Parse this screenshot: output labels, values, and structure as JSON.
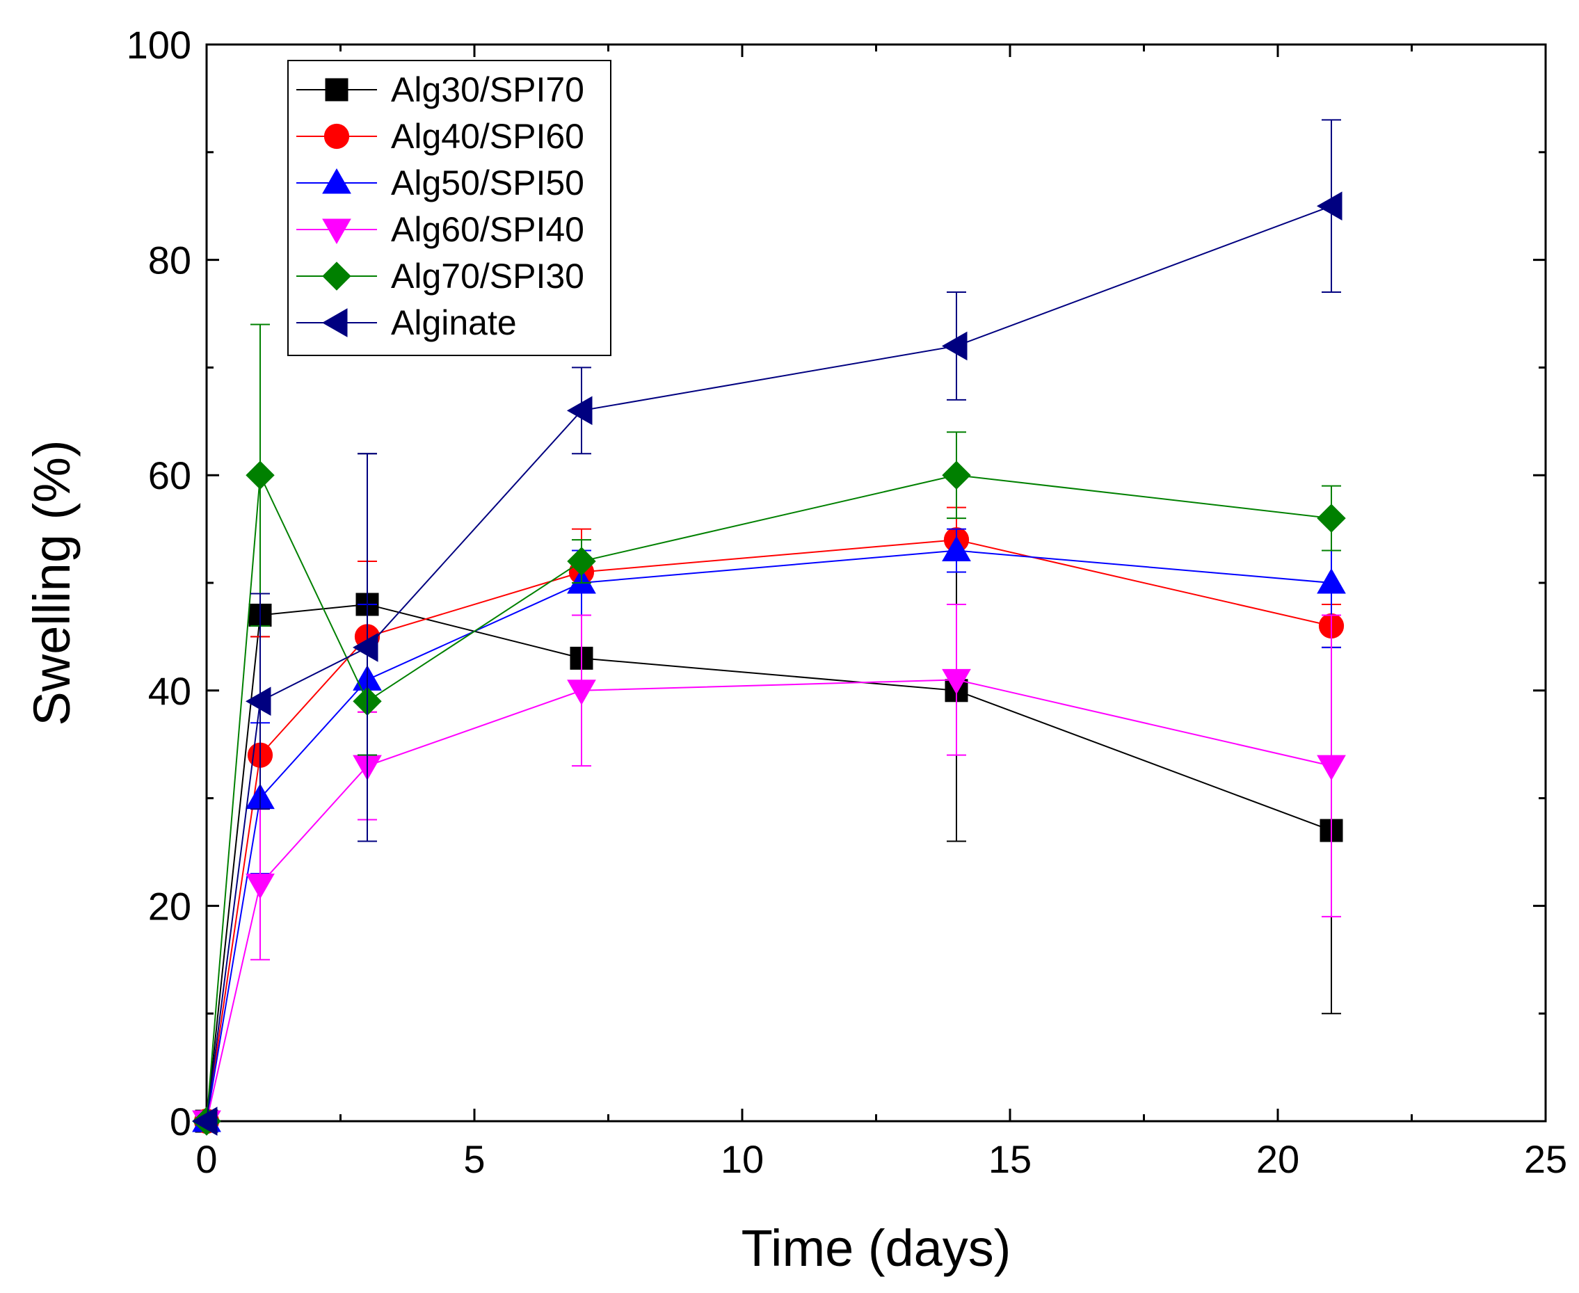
{
  "chart_data": {
    "type": "line",
    "title": "",
    "xlabel": "Time (days)",
    "ylabel": "Swelling (%)",
    "xlim": [
      0,
      25
    ],
    "ylim": [
      0,
      100
    ],
    "xticks": [
      0,
      5,
      10,
      15,
      20,
      25
    ],
    "yticks": [
      0,
      20,
      40,
      60,
      80,
      100
    ],
    "x_minor_step": 2.5,
    "y_minor_step": 10,
    "grid": false,
    "legend_position": "top-left",
    "series": [
      {
        "name": "Alg30/SPI70",
        "color": "#000000",
        "marker": "square",
        "x": [
          0,
          1,
          3,
          7,
          14,
          21
        ],
        "y": [
          0,
          47,
          48,
          43,
          40,
          27
        ],
        "err": [
          0,
          2,
          14,
          0,
          14,
          17
        ]
      },
      {
        "name": "Alg40/SPI60",
        "color": "#ff0000",
        "marker": "circle",
        "x": [
          0,
          1,
          3,
          7,
          14,
          21
        ],
        "y": [
          0,
          34,
          45,
          51,
          54,
          46
        ],
        "err": [
          0,
          11,
          7,
          4,
          3,
          2
        ]
      },
      {
        "name": "Alg50/SPI50",
        "color": "#0000ff",
        "marker": "triangle-up",
        "x": [
          0,
          1,
          3,
          7,
          14,
          21
        ],
        "y": [
          0,
          30,
          41,
          50,
          53,
          50
        ],
        "err": [
          0,
          7,
          7,
          3,
          2,
          6
        ]
      },
      {
        "name": "Alg60/SPI40",
        "color": "#ff00ff",
        "marker": "triangle-down",
        "x": [
          0,
          1,
          3,
          7,
          14,
          21
        ],
        "y": [
          0,
          22,
          33,
          40,
          41,
          33
        ],
        "err": [
          0,
          7,
          5,
          7,
          7,
          14
        ]
      },
      {
        "name": "Alg70/SPI30",
        "color": "#008000",
        "marker": "diamond",
        "x": [
          0,
          1,
          3,
          7,
          14,
          21
        ],
        "y": [
          0,
          60,
          39,
          52,
          60,
          56
        ],
        "err": [
          0,
          14,
          5,
          2,
          4,
          3
        ]
      },
      {
        "name": "Alginate",
        "color": "#000080",
        "marker": "triangle-left",
        "x": [
          0,
          1,
          3,
          7,
          14,
          21
        ],
        "y": [
          0,
          39,
          44,
          66,
          72,
          85
        ],
        "err": [
          0,
          10,
          18,
          4,
          5,
          8
        ]
      }
    ]
  }
}
